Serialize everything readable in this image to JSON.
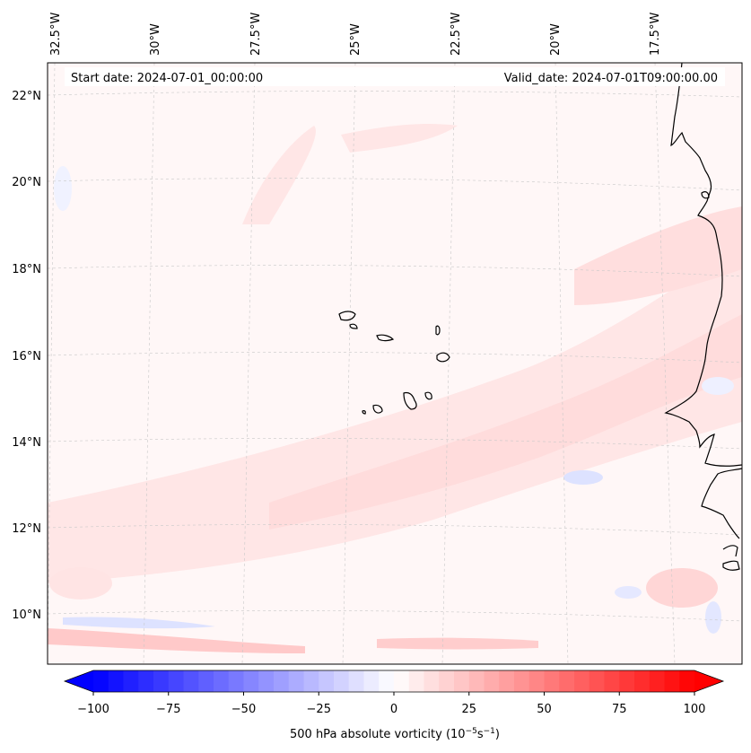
{
  "map": {
    "header_left": "Start date: 2024-07-01_00:00:00",
    "header_right": "Valid_date: 2024-07-01T09:00:00.00",
    "longitude_labels": [
      "32.5°W",
      "30°W",
      "27.5°W",
      "25°W",
      "22.5°W",
      "20°W",
      "17.5°W"
    ],
    "latitude_labels": [
      "22°N",
      "20°N",
      "18°N",
      "16°N",
      "14°N",
      "12°N",
      "10°N"
    ],
    "field_colors": {
      "background": "#fff7f7",
      "light_red": "#ffe6e6",
      "mid_red": "#ffd3d3",
      "strong_red": "#ffc2c2",
      "light_blue": "#ecefff",
      "mid_blue": "#dde2ff"
    }
  },
  "colorbar": {
    "label": "500 hPa absolute vorticity (10",
    "label_exp1": "−5",
    "label_mid": "s",
    "label_exp2": "−1",
    "label_end": ")",
    "ticks": [
      "−100",
      "−75",
      "−50",
      "−25",
      "0",
      "25",
      "50",
      "75",
      "100"
    ],
    "min": -100,
    "max": 100,
    "neg_color": "#0000ff",
    "pos_color": "#ff0000"
  }
}
